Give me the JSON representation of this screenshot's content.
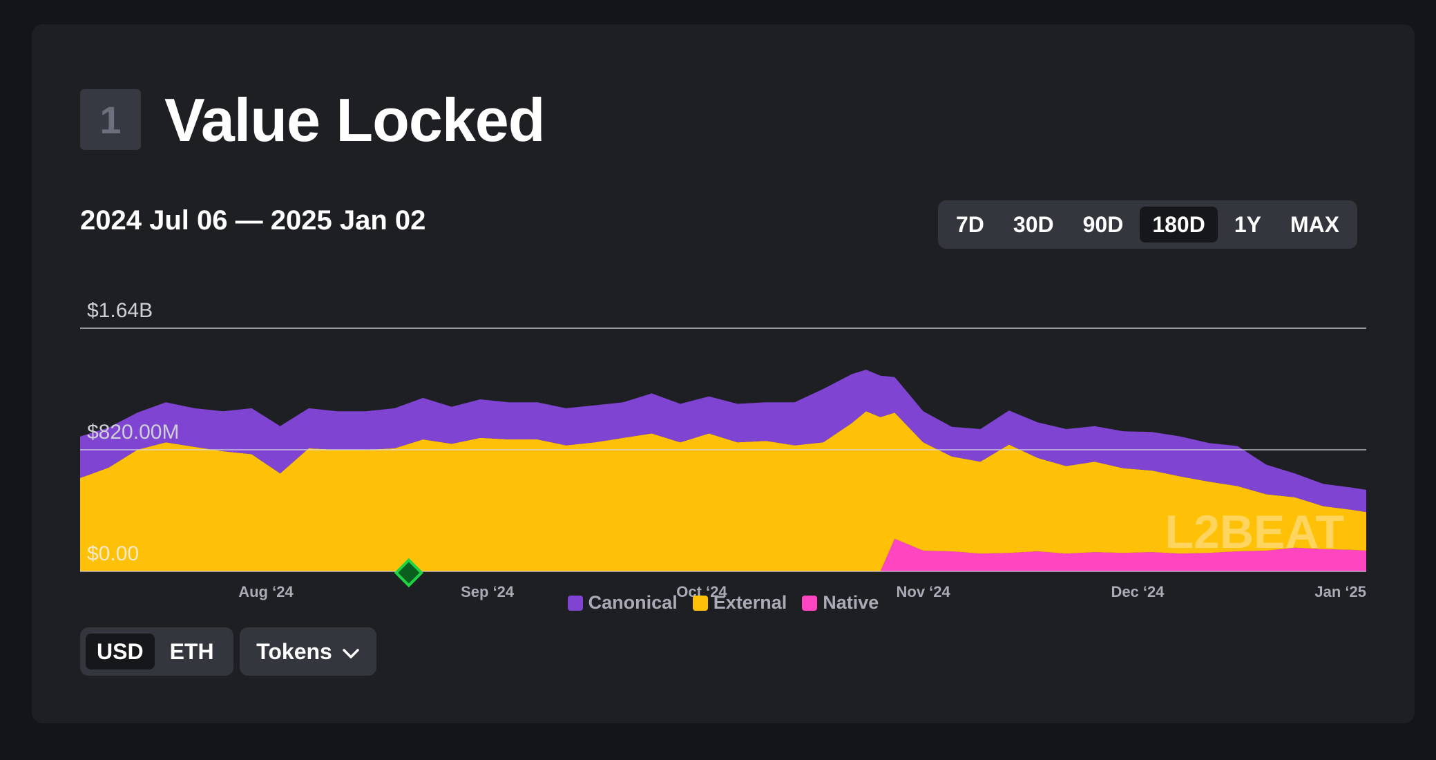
{
  "section": {
    "number": "1",
    "title": "Value Locked"
  },
  "date_range": "2024 Jul 06 — 2025 Jan 02",
  "range_buttons": [
    {
      "label": "7D",
      "active": false
    },
    {
      "label": "30D",
      "active": false
    },
    {
      "label": "90D",
      "active": false
    },
    {
      "label": "180D",
      "active": true
    },
    {
      "label": "1Y",
      "active": false
    },
    {
      "label": "MAX",
      "active": false
    }
  ],
  "unit_toggle": {
    "usd": "USD",
    "eth": "ETH",
    "active": "USD"
  },
  "tokens_button": {
    "label": "Tokens",
    "icon": "chevron-down-icon"
  },
  "watermark": "L2BEAT",
  "colors": {
    "canonical": "#7f44d1",
    "external": "#ffc107",
    "native": "#ff46c0",
    "milestone": "#1dd444"
  },
  "chart_data": {
    "type": "area",
    "stacked": true,
    "ylim": [
      0,
      1640000000
    ],
    "y_ticks": [
      "$0.00",
      "$820.00M",
      "$1.64B"
    ],
    "y_tick_values": [
      0,
      820000000,
      1640000000
    ],
    "x_start": "2024-07-06",
    "x_end": "2025-01-02",
    "x_ticks": [
      "Aug ‘24",
      "Sep ‘24",
      "Oct ‘24",
      "Nov ‘24",
      "Dec ‘24",
      "Jan ‘25"
    ],
    "x_tick_dates": [
      "2024-08-01",
      "2024-09-01",
      "2024-10-01",
      "2024-11-01",
      "2024-12-01",
      "2025-01-02"
    ],
    "milestone_date": "2024-08-21",
    "legend": [
      "Canonical",
      "External",
      "Native"
    ],
    "dates": [
      "2024-07-06",
      "2024-07-10",
      "2024-07-14",
      "2024-07-18",
      "2024-07-22",
      "2024-07-26",
      "2024-07-30",
      "2024-08-03",
      "2024-08-07",
      "2024-08-11",
      "2024-08-15",
      "2024-08-19",
      "2024-08-23",
      "2024-08-27",
      "2024-08-31",
      "2024-09-04",
      "2024-09-08",
      "2024-09-12",
      "2024-09-16",
      "2024-09-20",
      "2024-09-24",
      "2024-09-28",
      "2024-10-02",
      "2024-10-06",
      "2024-10-10",
      "2024-10-14",
      "2024-10-18",
      "2024-10-22",
      "2024-10-24",
      "2024-10-26",
      "2024-10-28",
      "2024-11-01",
      "2024-11-05",
      "2024-11-09",
      "2024-11-13",
      "2024-11-17",
      "2024-11-21",
      "2024-11-25",
      "2024-11-29",
      "2024-12-03",
      "2024-12-07",
      "2024-12-11",
      "2024-12-15",
      "2024-12-19",
      "2024-12-23",
      "2024-12-27",
      "2024-12-31",
      "2025-01-02"
    ],
    "series": [
      {
        "name": "Native",
        "values": [
          0,
          0,
          0,
          0,
          0,
          0,
          0,
          0,
          0,
          0,
          0,
          0,
          0,
          0,
          0,
          0,
          0,
          0,
          0,
          0,
          0,
          0,
          0,
          0,
          0,
          0,
          0,
          0,
          0,
          0,
          220000000,
          140000000,
          135000000,
          120000000,
          125000000,
          135000000,
          120000000,
          130000000,
          125000000,
          130000000,
          120000000,
          125000000,
          135000000,
          140000000,
          160000000,
          150000000,
          145000000,
          140000000
        ]
      },
      {
        "name": "External",
        "values": [
          630000000,
          700000000,
          820000000,
          870000000,
          840000000,
          810000000,
          790000000,
          660000000,
          830000000,
          820000000,
          820000000,
          830000000,
          890000000,
          860000000,
          900000000,
          890000000,
          890000000,
          850000000,
          870000000,
          900000000,
          930000000,
          870000000,
          930000000,
          870000000,
          880000000,
          850000000,
          870000000,
          1000000000,
          1080000000,
          1040000000,
          850000000,
          730000000,
          640000000,
          620000000,
          730000000,
          630000000,
          590000000,
          610000000,
          570000000,
          550000000,
          520000000,
          480000000,
          440000000,
          380000000,
          340000000,
          290000000,
          270000000,
          260000000
        ]
      },
      {
        "name": "Canonical",
        "values": [
          280000000,
          270000000,
          250000000,
          270000000,
          260000000,
          270000000,
          310000000,
          320000000,
          270000000,
          260000000,
          260000000,
          270000000,
          280000000,
          250000000,
          260000000,
          250000000,
          250000000,
          250000000,
          250000000,
          240000000,
          270000000,
          260000000,
          250000000,
          260000000,
          260000000,
          290000000,
          360000000,
          330000000,
          280000000,
          280000000,
          240000000,
          210000000,
          200000000,
          220000000,
          230000000,
          240000000,
          250000000,
          240000000,
          250000000,
          260000000,
          270000000,
          260000000,
          270000000,
          200000000,
          160000000,
          150000000,
          150000000,
          150000000
        ]
      }
    ]
  }
}
